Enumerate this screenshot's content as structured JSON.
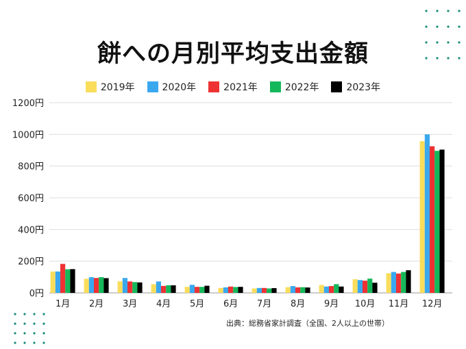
{
  "chart_data": {
    "type": "bar",
    "title": "餅への月別平均支出金額",
    "categories": [
      "1月",
      "2月",
      "3月",
      "4月",
      "5月",
      "6月",
      "7月",
      "8月",
      "9月",
      "10月",
      "11月",
      "12月"
    ],
    "series": [
      {
        "name": "2019年",
        "color": "#f9dd5b",
        "values": [
          135,
          89,
          73,
          55,
          38,
          31,
          28,
          36,
          50,
          86,
          124,
          957
        ]
      },
      {
        "name": "2020年",
        "color": "#3aa8ef",
        "values": [
          135,
          99,
          94,
          72,
          51,
          35,
          31,
          43,
          40,
          81,
          132,
          1000
        ]
      },
      {
        "name": "2021年",
        "color": "#ee3234",
        "values": [
          183,
          94,
          72,
          44,
          38,
          40,
          31,
          35,
          43,
          77,
          122,
          925
        ]
      },
      {
        "name": "2022年",
        "color": "#14b85a",
        "values": [
          149,
          99,
          68,
          48,
          38,
          37,
          28,
          36,
          55,
          90,
          132,
          896
        ]
      },
      {
        "name": "2023年",
        "color": "#000000",
        "values": [
          150,
          93,
          66,
          48,
          45,
          38,
          30,
          34,
          40,
          64,
          143,
          904
        ]
      }
    ],
    "yticks": [
      "0円",
      "200円",
      "400円",
      "600円",
      "800円",
      "1000円",
      "1200円"
    ],
    "ylim": [
      0,
      1200
    ],
    "grid": true,
    "legend_position": "top",
    "source": "出典：総務省家計調査（全国、2人以上の世帯）"
  },
  "decor_color": "#1a8a7a"
}
